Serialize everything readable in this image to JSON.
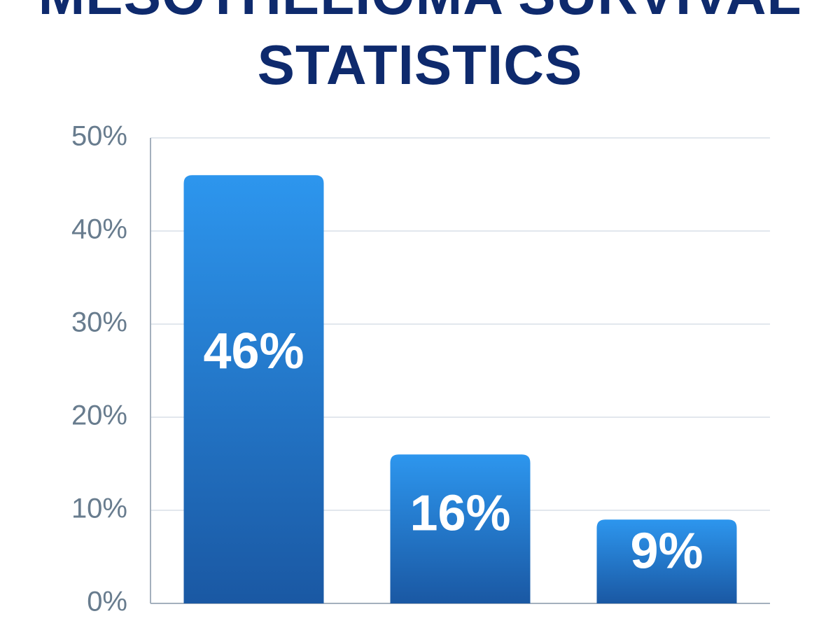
{
  "chart_data": {
    "type": "bar",
    "title": "MESOTHELIOMA SURVIVAL STATISTICS",
    "title_color": "#0e2a6d",
    "values": [
      46,
      16,
      9
    ],
    "value_labels": [
      "46%",
      "16%",
      "9%"
    ],
    "color": [
      "#2d96ee",
      "#1a58a3"
    ],
    "ylim": [
      0,
      50
    ],
    "yticks": [
      {
        "value": 0,
        "label": "0%"
      },
      {
        "value": 10,
        "label": "10%"
      },
      {
        "value": 20,
        "label": "20%"
      },
      {
        "value": 30,
        "label": "30%"
      },
      {
        "value": 40,
        "label": "40%"
      },
      {
        "value": 50,
        "label": "50%"
      }
    ],
    "grid": true
  }
}
